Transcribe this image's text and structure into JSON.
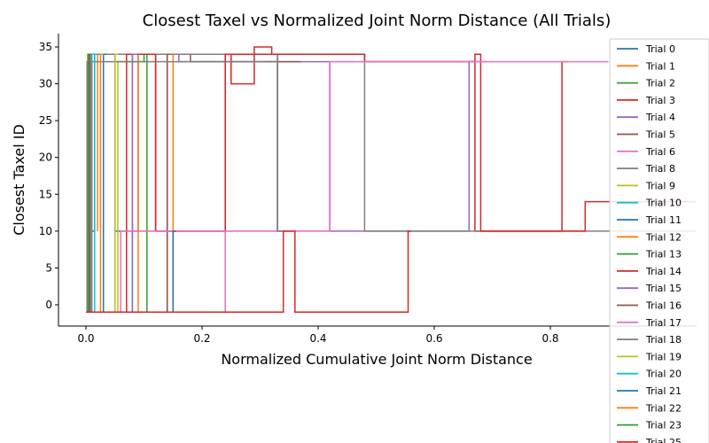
{
  "chart_data": {
    "type": "line",
    "title": "Closest Taxel vs Normalized Joint Norm Distance (All Trials)",
    "xlabel": "Normalized Cumulative Joint Norm Distance",
    "ylabel": "Closest Taxel ID",
    "xlim": [
      -0.05,
      1.05
    ],
    "ylim": [
      -3,
      37
    ],
    "xticks": [
      0.0,
      0.2,
      0.4,
      0.6,
      0.8
    ],
    "yticks": [
      0,
      5,
      10,
      15,
      20,
      25,
      30,
      35
    ],
    "grid": false,
    "legend_placement": "right (clipped)",
    "series": [
      {
        "name": "Trial 0",
        "color": "#1f77b4",
        "points": [
          [
            0.0,
            -1
          ],
          [
            0.002,
            -1
          ],
          [
            0.002,
            33
          ],
          [
            0.004,
            33
          ],
          [
            0.004,
            34
          ],
          [
            0.01,
            34
          ],
          [
            0.01,
            10
          ],
          [
            0.015,
            10
          ],
          [
            0.015,
            34
          ],
          [
            0.05,
            34
          ],
          [
            0.05,
            10
          ],
          [
            0.09,
            10
          ],
          [
            0.09,
            34
          ],
          [
            0.14,
            34
          ],
          [
            0.14,
            -1
          ],
          [
            0.15,
            -1
          ]
        ]
      },
      {
        "name": "Trial 1",
        "color": "#ff7f0e",
        "points": [
          [
            0.0,
            -1
          ],
          [
            0.003,
            -1
          ],
          [
            0.003,
            34
          ],
          [
            0.02,
            34
          ],
          [
            0.02,
            10
          ],
          [
            0.02,
            10
          ],
          [
            0.02,
            34
          ],
          [
            0.15,
            34
          ],
          [
            0.15,
            -1
          ],
          [
            0.16,
            -1
          ]
        ]
      },
      {
        "name": "Trial 2",
        "color": "#2ca02c",
        "points": [
          [
            0.0,
            -1
          ],
          [
            0.004,
            -1
          ],
          [
            0.004,
            34
          ],
          [
            0.05,
            34
          ],
          [
            0.05,
            33
          ],
          [
            0.1,
            33
          ],
          [
            0.1,
            34
          ],
          [
            0.33,
            34
          ],
          [
            0.33,
            10
          ],
          [
            0.34,
            10
          ]
        ]
      },
      {
        "name": "Trial 3",
        "color": "#d62728",
        "points": [
          [
            0.0,
            -1
          ],
          [
            0.005,
            -1
          ],
          [
            0.005,
            34
          ],
          [
            0.12,
            34
          ],
          [
            0.12,
            10
          ],
          [
            0.24,
            10
          ],
          [
            0.24,
            34
          ],
          [
            0.25,
            34
          ],
          [
            0.25,
            30
          ],
          [
            0.29,
            30
          ],
          [
            0.29,
            35
          ],
          [
            0.32,
            35
          ],
          [
            0.32,
            34
          ],
          [
            0.48,
            34
          ],
          [
            0.48,
            33
          ],
          [
            0.67,
            33
          ],
          [
            0.67,
            10
          ],
          [
            0.82,
            10
          ],
          [
            0.82,
            33
          ],
          [
            0.83,
            33
          ]
        ]
      },
      {
        "name": "Trial 4",
        "color": "#9467bd",
        "points": [
          [
            0.0,
            -1
          ],
          [
            0.006,
            -1
          ],
          [
            0.006,
            34
          ],
          [
            0.08,
            34
          ],
          [
            0.08,
            -1
          ],
          [
            0.08,
            -1
          ],
          [
            0.08,
            34
          ],
          [
            0.16,
            34
          ],
          [
            0.16,
            33
          ],
          [
            0.42,
            33
          ],
          [
            0.42,
            10
          ],
          [
            0.66,
            10
          ],
          [
            0.66,
            33
          ],
          [
            0.69,
            33
          ]
        ]
      },
      {
        "name": "Trial 5",
        "color": "#8c564b",
        "points": [
          [
            0.0,
            -1
          ],
          [
            0.007,
            -1
          ],
          [
            0.007,
            34
          ],
          [
            0.14,
            34
          ],
          [
            0.14,
            -1
          ],
          [
            0.14,
            -1
          ],
          [
            0.14,
            34
          ],
          [
            0.18,
            34
          ],
          [
            0.18,
            33
          ],
          [
            0.37,
            33
          ]
        ]
      },
      {
        "name": "Trial 6",
        "color": "#e377c2",
        "points": [
          [
            0.0,
            -1
          ],
          [
            0.06,
            -1
          ],
          [
            0.06,
            10
          ],
          [
            0.24,
            10
          ],
          [
            0.24,
            -1
          ],
          [
            0.24,
            -1
          ],
          [
            0.24,
            10
          ],
          [
            0.42,
            10
          ],
          [
            0.42,
            33
          ],
          [
            0.66,
            33
          ],
          [
            0.66,
            33
          ],
          [
            0.68,
            33
          ]
        ]
      },
      {
        "name": "Trial 8",
        "color": "#7f7f7f",
        "points": [
          [
            0.0,
            -1
          ],
          [
            0.01,
            -1
          ],
          [
            0.01,
            34
          ],
          [
            0.33,
            34
          ],
          [
            0.33,
            10
          ],
          [
            0.33,
            10
          ],
          [
            0.33,
            34
          ],
          [
            0.48,
            34
          ],
          [
            0.48,
            10
          ],
          [
            0.66,
            10
          ],
          [
            0.66,
            10
          ],
          [
            1.05,
            10
          ]
        ]
      },
      {
        "name": "Trial 9",
        "color": "#bcbd22",
        "points": [
          [
            0.0,
            -1
          ],
          [
            0.055,
            -1
          ],
          [
            0.055,
            33
          ],
          [
            0.06,
            33
          ]
        ]
      },
      {
        "name": "Trial 10",
        "color": "#17becf",
        "points": [
          [
            0.0,
            -1
          ],
          [
            0.01,
            -1
          ],
          [
            0.01,
            34
          ],
          [
            0.012,
            34
          ]
        ]
      },
      {
        "name": "Trial 11",
        "color": "#1f77b4",
        "points": [
          [
            0.0,
            -1
          ],
          [
            0.03,
            -1
          ],
          [
            0.03,
            34
          ],
          [
            0.035,
            34
          ]
        ]
      },
      {
        "name": "Trial 12",
        "color": "#ff7f0e",
        "points": [
          [
            0.0,
            -1
          ],
          [
            0.09,
            -1
          ],
          [
            0.09,
            34
          ],
          [
            0.095,
            34
          ]
        ]
      },
      {
        "name": "Trial 13",
        "color": "#2ca02c",
        "points": [
          [
            0.0,
            -1
          ],
          [
            0.105,
            -1
          ],
          [
            0.105,
            34
          ],
          [
            0.11,
            34
          ]
        ]
      },
      {
        "name": "Trial 14",
        "color": "#d62728",
        "points": [
          [
            0.0,
            -1
          ],
          [
            0.07,
            -1
          ],
          [
            0.07,
            34
          ],
          [
            0.12,
            34
          ],
          [
            0.12,
            10
          ],
          [
            0.24,
            10
          ],
          [
            0.24,
            34
          ],
          [
            0.48,
            34
          ],
          [
            0.48,
            33
          ],
          [
            0.67,
            33
          ],
          [
            0.67,
            34
          ],
          [
            0.68,
            34
          ],
          [
            0.68,
            10
          ],
          [
            0.86,
            10
          ],
          [
            0.86,
            14
          ],
          [
            1.05,
            14
          ]
        ]
      },
      {
        "name": "Trial 15",
        "color": "#9467bd",
        "points": [
          [
            0.0,
            -1
          ],
          [
            0.08,
            -1
          ],
          [
            0.08,
            34
          ],
          [
            0.09,
            34
          ]
        ]
      },
      {
        "name": "Trial 16",
        "color": "#8c564b",
        "points": [
          [
            0.0,
            -1
          ],
          [
            0.14,
            -1
          ],
          [
            0.14,
            34
          ],
          [
            0.145,
            34
          ]
        ]
      },
      {
        "name": "Trial 17",
        "color": "#e377c2",
        "points": [
          [
            0.0,
            -1
          ],
          [
            0.06,
            -1
          ],
          [
            0.06,
            10
          ],
          [
            0.24,
            10
          ],
          [
            0.24,
            -1
          ],
          [
            0.24,
            -1
          ],
          [
            0.24,
            10
          ],
          [
            0.42,
            10
          ],
          [
            0.42,
            33
          ],
          [
            0.9,
            33
          ]
        ]
      },
      {
        "name": "Trial 18",
        "color": "#7f7f7f",
        "points": [
          [
            0.0,
            -1
          ],
          [
            0.01,
            -1
          ],
          [
            0.01,
            33
          ],
          [
            0.33,
            33
          ],
          [
            0.33,
            10
          ],
          [
            0.34,
            10
          ]
        ]
      },
      {
        "name": "Trial 19",
        "color": "#bcbd22",
        "points": [
          [
            0.0,
            -1
          ],
          [
            0.05,
            -1
          ],
          [
            0.05,
            34
          ],
          [
            0.055,
            34
          ]
        ]
      },
      {
        "name": "Trial 20",
        "color": "#17becf",
        "points": [
          [
            0.0,
            -1
          ],
          [
            0.015,
            -1
          ],
          [
            0.015,
            34
          ],
          [
            0.02,
            34
          ]
        ]
      },
      {
        "name": "Trial 21",
        "color": "#1f77b4",
        "points": [
          [
            0.0,
            -1
          ],
          [
            0.15,
            -1
          ],
          [
            0.15,
            10
          ],
          [
            0.155,
            10
          ]
        ]
      },
      {
        "name": "Trial 22",
        "color": "#ff7f0e",
        "points": [
          [
            0.0,
            -1
          ],
          [
            0.025,
            -1
          ],
          [
            0.025,
            34
          ],
          [
            0.03,
            34
          ]
        ]
      },
      {
        "name": "Trial 23",
        "color": "#2ca02c",
        "points": [
          [
            0.0,
            -1
          ],
          [
            0.004,
            -1
          ],
          [
            0.004,
            34
          ],
          [
            0.006,
            34
          ]
        ]
      },
      {
        "name": "Trial 25",
        "color": "#d62728",
        "points": [
          [
            0.0,
            -1
          ],
          [
            0.34,
            -1
          ],
          [
            0.34,
            10
          ],
          [
            0.36,
            10
          ],
          [
            0.36,
            -1
          ],
          [
            0.555,
            -1
          ],
          [
            0.555,
            10
          ],
          [
            0.56,
            10
          ]
        ]
      }
    ]
  }
}
